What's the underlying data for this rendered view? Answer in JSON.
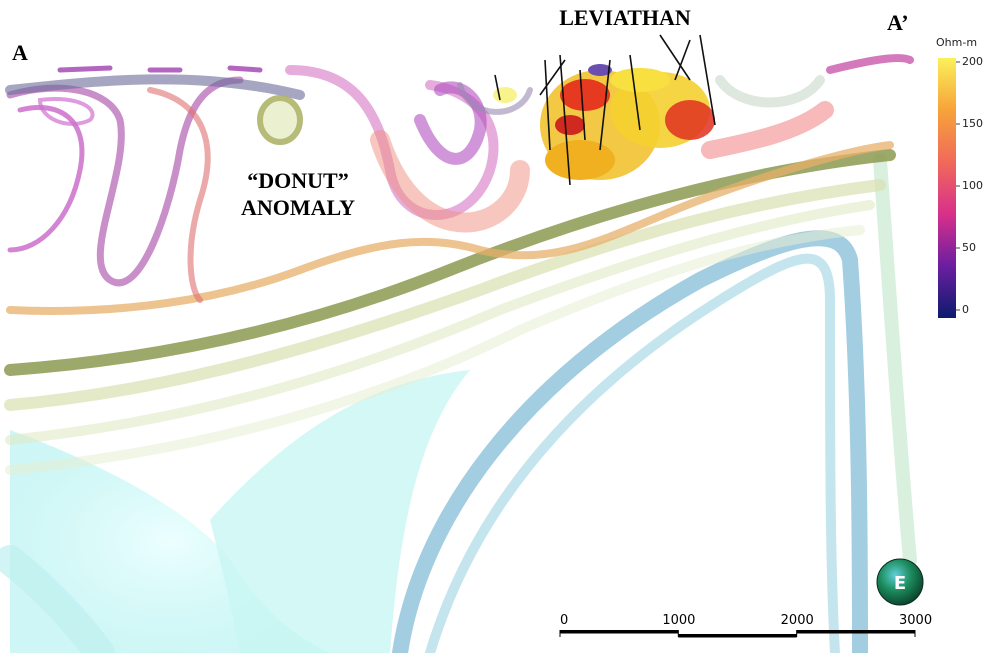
{
  "labels": {
    "left_end": "A",
    "right_end": "A’",
    "target": "LEVIATHAN",
    "anomaly_line1": "“DONUT”",
    "anomaly_line2": "ANOMALY"
  },
  "colorbar": {
    "title": "Ohm-m",
    "lim": [
      0,
      200
    ],
    "ticks": [
      0,
      50,
      100,
      150,
      200
    ]
  },
  "scale_bar": {
    "lim": [
      0,
      3000
    ],
    "ticks": [
      0,
      1000,
      2000,
      3000
    ]
  },
  "compass": {
    "label": "E"
  }
}
